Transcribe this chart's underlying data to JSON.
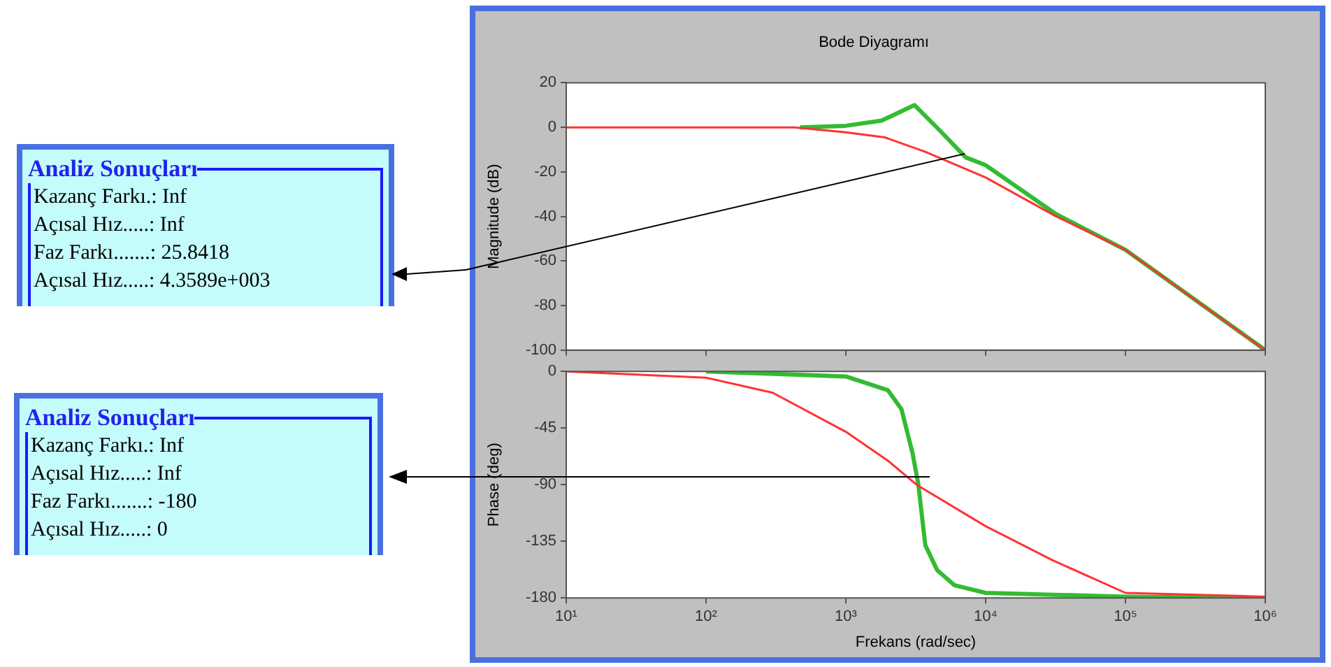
{
  "chart_data": [
    {
      "type": "line",
      "title": "Bode Diyagramı",
      "ylabel": "Magnitude (dB)",
      "log": "x",
      "xlim": [
        10,
        1000000
      ],
      "xticks": [
        {
          "value": 10,
          "label": null
        },
        {
          "value": 100,
          "label": null
        },
        {
          "value": 1000,
          "label": null
        },
        {
          "value": 10000,
          "label": null
        },
        {
          "value": 100000,
          "label": null
        },
        {
          "value": 1000000,
          "label": null
        }
      ],
      "ylim": [
        -100,
        20
      ],
      "yticks": [
        -100,
        -80,
        -60,
        -40,
        -20,
        0,
        20
      ],
      "tick_labels": "y",
      "legend": false,
      "marker": "none",
      "line_style": "solid",
      "series": [
        {
          "color": "#33bb33",
          "x": [
            470,
            1000,
            1800,
            3100,
            4800,
            7200,
            10000,
            32000,
            100000,
            1000000
          ],
          "values": [
            0,
            0.7,
            3,
            10,
            -2,
            -13.5,
            -17,
            -39,
            -55,
            -100
          ]
        },
        {
          "color": "#ff3333",
          "x": [
            10,
            430,
            1000,
            1900,
            3700,
            10000,
            32000,
            100000,
            1000000
          ],
          "values": [
            0,
            0,
            -2.2,
            -4.5,
            -11,
            -22.5,
            -40,
            -55,
            -100
          ]
        }
      ]
    },
    {
      "type": "line",
      "xlabel": "Frekans (rad/sec)",
      "ylabel": "Phase (deg)",
      "log": "x",
      "xlim": [
        10,
        1000000
      ],
      "xticks": [
        {
          "value": 10,
          "label": "10¹"
        },
        {
          "value": 100,
          "label": "10²"
        },
        {
          "value": 1000,
          "label": "10³"
        },
        {
          "value": 10000,
          "label": "10⁴"
        },
        {
          "value": 100000,
          "label": "10⁵"
        },
        {
          "value": 1000000,
          "label": "10⁶"
        }
      ],
      "ylim": [
        -180,
        0
      ],
      "yticks": [
        -180,
        -135,
        -90,
        -45,
        0
      ],
      "legend": false,
      "marker": "none",
      "line_style": "solid",
      "series": [
        {
          "color": "#33bb33",
          "x": [
            100,
            1000,
            2000,
            2500,
            3000,
            3300,
            3700,
            4500,
            6000,
            10000,
            100000,
            1000000
          ],
          "values": [
            0,
            -4,
            -15,
            -30,
            -65,
            -90,
            -138,
            -158,
            -170,
            -176,
            -179,
            -180
          ]
        },
        {
          "color": "#ff3333",
          "x": [
            10,
            100,
            300,
            1000,
            2000,
            3200,
            10000,
            30000,
            100000,
            1000000
          ],
          "values": [
            0,
            -5,
            -17,
            -48,
            -71,
            -90,
            -123,
            -150,
            -176,
            -179
          ]
        }
      ]
    },
    {
      "type": "other",
      "title": "Analiz Sonuçları",
      "annotations": [
        "Kazanç Farkı.: Inf",
        "Açısal Hız.....: Inf",
        "Faz Farkı.......: 25.8418",
        "Açısal Hız.....: 4.3589e+003"
      ]
    },
    {
      "type": "other",
      "title": "Analiz Sonuçları",
      "annotations": [
        "Kazanç Farkı.: Inf",
        "Açısal Hız.....: Inf",
        "Faz Farkı.......: -180",
        "Açısal Hız.....: 0"
      ]
    }
  ]
}
